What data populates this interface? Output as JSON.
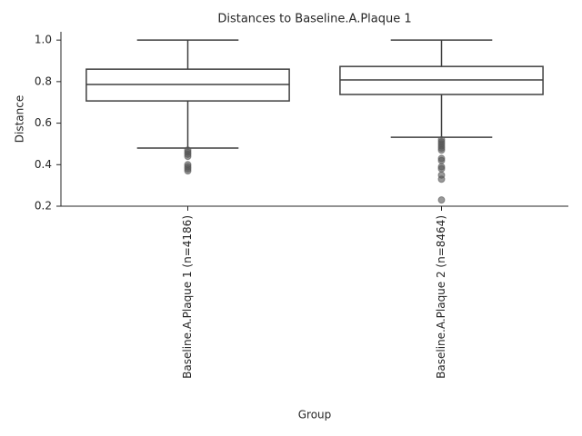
{
  "chart_data": {
    "type": "box",
    "title": "Distances to Baseline.A.Plaque 1",
    "x_label": "Group",
    "y_label": "Distance",
    "categories": [
      "Baseline.A.Plaque 1 (n=4186)",
      "Baseline.A.Plaque 2 (n=8464)"
    ],
    "boxes": [
      {
        "whislo": 0.48,
        "q1": 0.707,
        "med": 0.786,
        "q3": 0.86,
        "whishi": 1.0,
        "fliers": [
          0.47,
          0.46,
          0.45,
          0.44,
          0.4,
          0.39,
          0.38,
          0.37
        ]
      },
      {
        "whislo": 0.532,
        "q1": 0.738,
        "med": 0.808,
        "q3": 0.873,
        "whishi": 1.0,
        "fliers": [
          0.52,
          0.51,
          0.5,
          0.49,
          0.48,
          0.47,
          0.43,
          0.42,
          0.39,
          0.38,
          0.35,
          0.33,
          0.23
        ]
      }
    ],
    "color": "#3f3f3f",
    "box_fill": "#ffffff",
    "flier_color": "#555555",
    "ylim": [
      0.2,
      1.04
    ],
    "yticks": [
      0.2,
      0.4,
      0.6,
      0.8,
      {
        "value": 1,
        "label": "1.0"
      }
    ],
    "grid": false
  }
}
